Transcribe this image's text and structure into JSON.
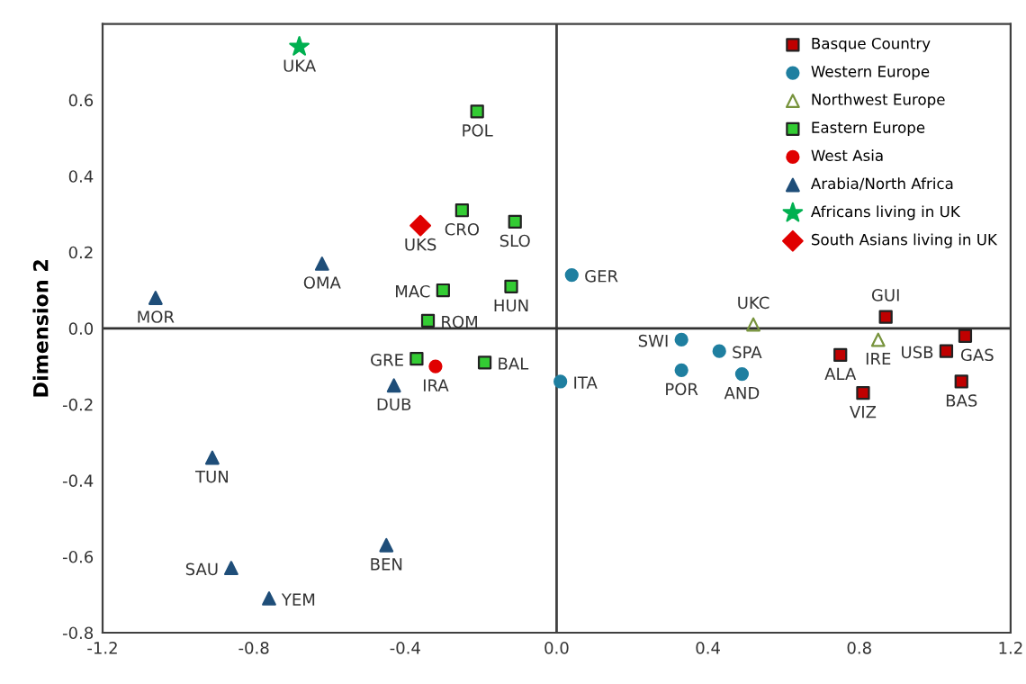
{
  "chart_data": {
    "type": "scatter",
    "ylabel": "Dimension 2",
    "xlim": [
      -1.2,
      1.2
    ],
    "ylim": [
      -0.8,
      0.8
    ],
    "xticks": [
      -1.2,
      -0.8,
      -0.4,
      {
        "value": 0,
        "label": "0.0"
      },
      0.4,
      0.8,
      1.2
    ],
    "yticks": [
      -0.8,
      -0.6,
      -0.4,
      -0.2,
      {
        "value": 0,
        "label": "0.0"
      },
      0.2,
      0.4,
      0.6
    ],
    "grid": false,
    "legend": "top right",
    "ref_lines": [
      {
        "axis": "x",
        "value": 0,
        "color": "#404040"
      },
      {
        "axis": "y",
        "value": 0,
        "color": "#303030"
      }
    ],
    "series": [
      {
        "name": "Basque Country",
        "color": "#c00000",
        "marker": "square",
        "x": [
          0.87,
          0.75,
          0.81,
          1.03,
          1.08,
          1.07
        ],
        "values": [
          0.03,
          -0.07,
          -0.17,
          -0.06,
          -0.02,
          -0.14
        ]
      },
      {
        "name": "Western Europe",
        "color": "#1f7fa0",
        "marker": "circle",
        "x": [
          0.04,
          0.33,
          0.43,
          0.33,
          0.49,
          0.01
        ],
        "values": [
          0.14,
          -0.03,
          -0.06,
          -0.11,
          -0.12,
          -0.14
        ]
      },
      {
        "name": "Northwest Europe",
        "color": "#77933c",
        "marker": "triangle",
        "x": [
          0.52,
          0.85
        ],
        "values": [
          0.01,
          -0.03
        ]
      },
      {
        "name": "Eastern Europe",
        "color": "#33cc33",
        "marker": "square",
        "x": [
          -0.21,
          -0.25,
          -0.11,
          -0.12,
          -0.3,
          -0.34,
          -0.37,
          -0.19
        ],
        "values": [
          0.57,
          0.31,
          0.28,
          0.11,
          0.1,
          0.02,
          -0.08,
          -0.09
        ]
      },
      {
        "name": "West Asia",
        "color": "#e00000",
        "marker": "circle",
        "x": [
          -0.32
        ],
        "values": [
          -0.1
        ]
      },
      {
        "name": "Arabia/North Africa",
        "color": "#1f4e79",
        "marker": "triangle",
        "x": [
          -0.62,
          -1.06,
          -0.43,
          -0.91,
          -0.45,
          -0.86,
          -0.76
        ],
        "values": [
          0.17,
          0.08,
          -0.15,
          -0.34,
          -0.57,
          -0.63,
          -0.71
        ]
      },
      {
        "name": "Africans living in UK",
        "color": "#00b050",
        "marker": "star",
        "x": [
          -0.68
        ],
        "values": [
          0.74
        ]
      },
      {
        "name": "South Asians living in UK",
        "color": "#e00000",
        "marker": "diamond",
        "x": [
          -0.36
        ],
        "values": [
          0.27
        ]
      }
    ],
    "annotations": [
      {
        "text": "GUI",
        "x": 0.87,
        "y": 0.03
      },
      {
        "text": "ALA",
        "x": 0.75,
        "y": -0.07
      },
      {
        "text": "VIZ",
        "x": 0.81,
        "y": -0.17
      },
      {
        "text": "USB",
        "x": 1.03,
        "y": -0.06
      },
      {
        "text": "GAS",
        "x": 1.08,
        "y": -0.02
      },
      {
        "text": "BAS",
        "x": 1.07,
        "y": -0.14
      },
      {
        "text": "GER",
        "x": 0.04,
        "y": 0.14
      },
      {
        "text": "SWI",
        "x": 0.33,
        "y": -0.03
      },
      {
        "text": "SPA",
        "x": 0.43,
        "y": -0.06
      },
      {
        "text": "POR",
        "x": 0.33,
        "y": -0.11
      },
      {
        "text": "AND",
        "x": 0.49,
        "y": -0.12
      },
      {
        "text": "ITA",
        "x": 0.01,
        "y": -0.14
      },
      {
        "text": "UKC",
        "x": 0.52,
        "y": 0.01
      },
      {
        "text": "IRE",
        "x": 0.85,
        "y": -0.03
      },
      {
        "text": "POL",
        "x": -0.21,
        "y": 0.57
      },
      {
        "text": "CRO",
        "x": -0.25,
        "y": 0.31
      },
      {
        "text": "SLO",
        "x": -0.11,
        "y": 0.28
      },
      {
        "text": "HUN",
        "x": -0.12,
        "y": 0.11
      },
      {
        "text": "MAC",
        "x": -0.3,
        "y": 0.1
      },
      {
        "text": "ROM",
        "x": -0.34,
        "y": 0.02
      },
      {
        "text": "GRE",
        "x": -0.37,
        "y": -0.08
      },
      {
        "text": "BAL",
        "x": -0.19,
        "y": -0.09
      },
      {
        "text": "IRA",
        "x": -0.32,
        "y": -0.1
      },
      {
        "text": "OMA",
        "x": -0.62,
        "y": 0.17
      },
      {
        "text": "MOR",
        "x": -1.06,
        "y": 0.08
      },
      {
        "text": "DUB",
        "x": -0.43,
        "y": -0.15
      },
      {
        "text": "TUN",
        "x": -0.91,
        "y": -0.34
      },
      {
        "text": "BEN",
        "x": -0.45,
        "y": -0.57
      },
      {
        "text": "SAU",
        "x": -0.86,
        "y": -0.63
      },
      {
        "text": "YEM",
        "x": -0.76,
        "y": -0.71
      },
      {
        "text": "UKA",
        "x": -0.68,
        "y": 0.74
      },
      {
        "text": "UKS",
        "x": -0.36,
        "y": 0.27
      }
    ]
  }
}
